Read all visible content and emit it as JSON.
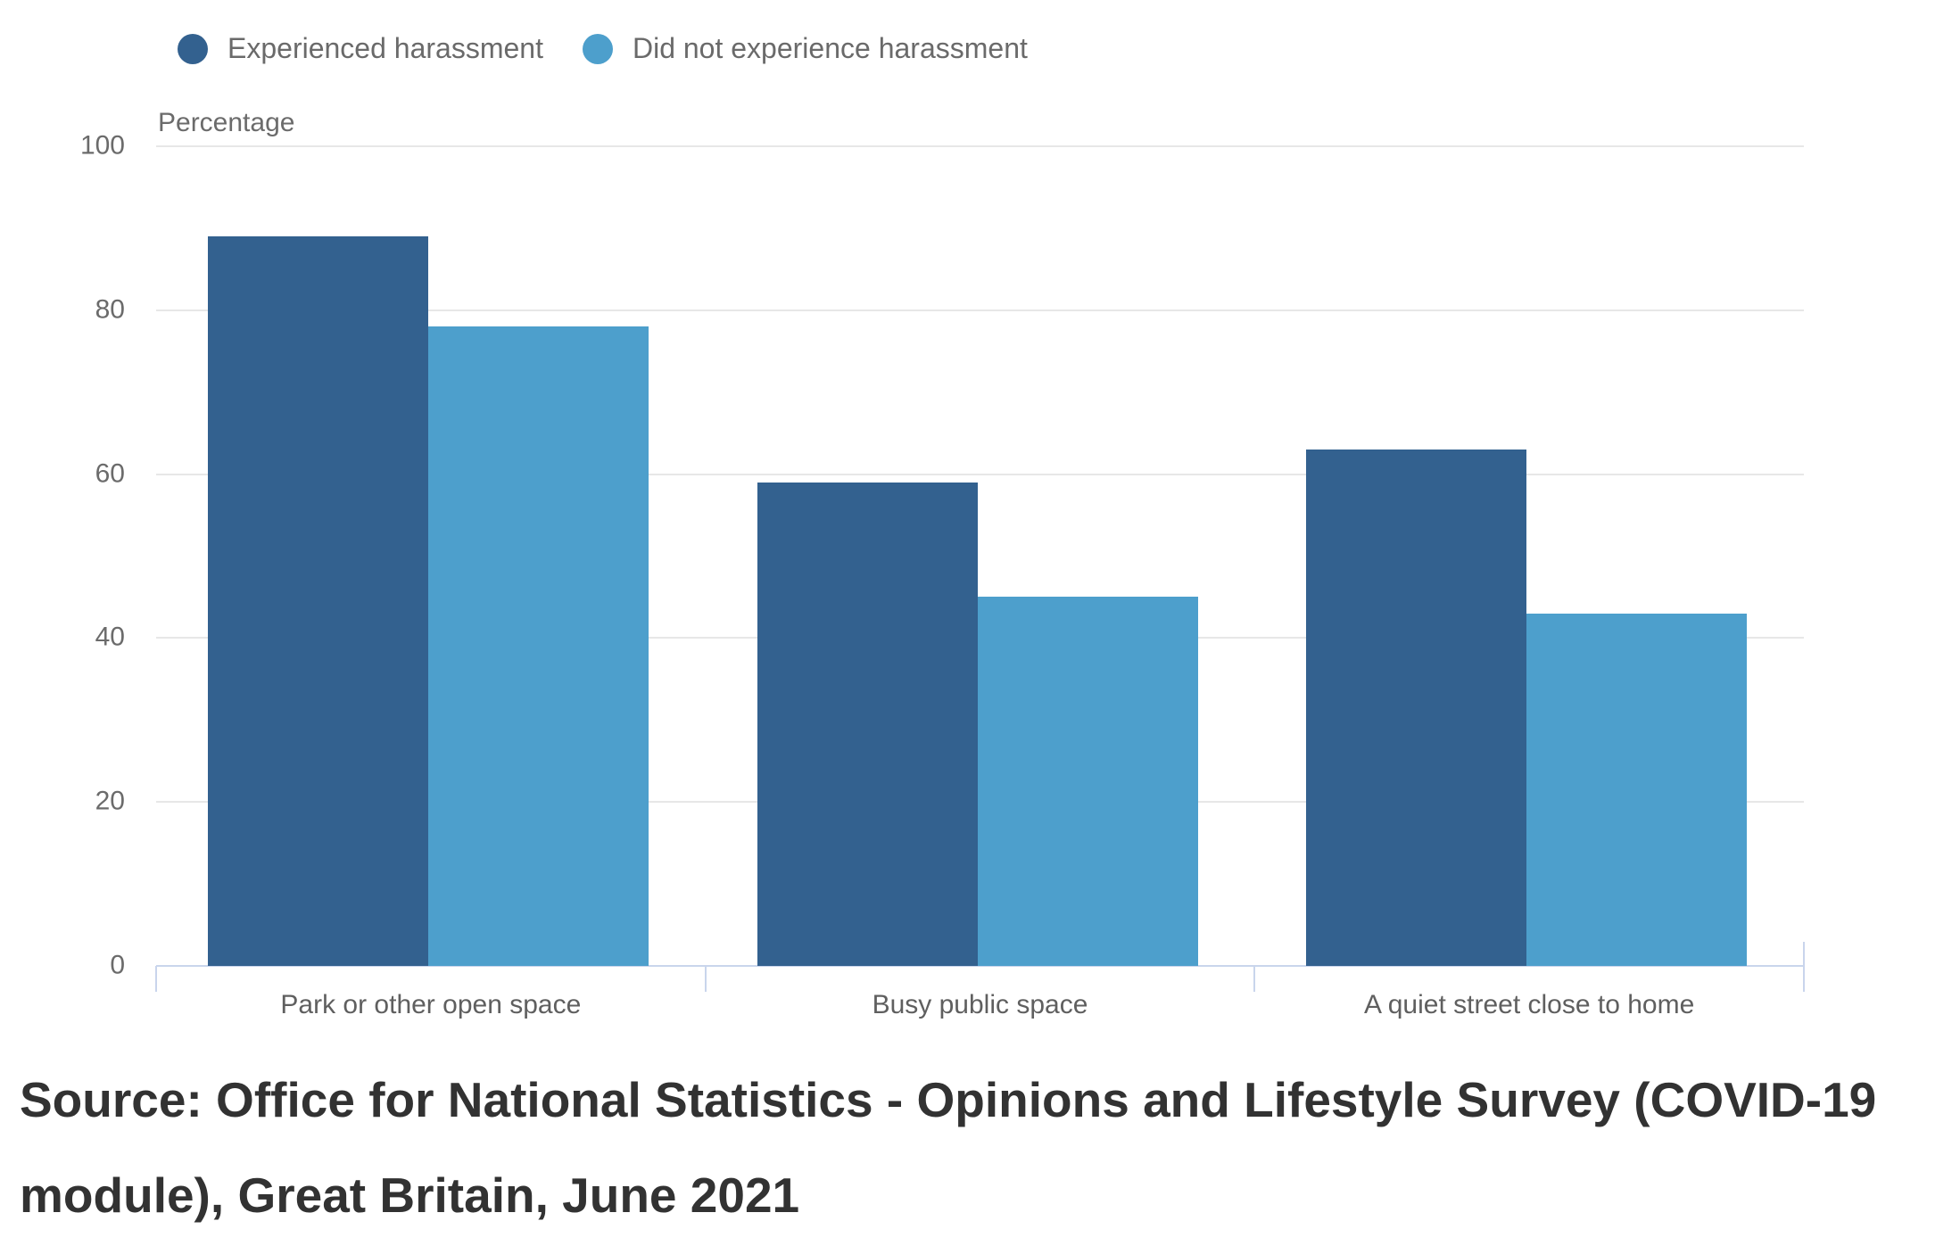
{
  "chart": {
    "y_axis_title": "Percentage",
    "legend": {
      "items": [
        {
          "label": "Experienced harassment",
          "color": "#33618f"
        },
        {
          "label": "Did not experience harassment",
          "color": "#4d9fcc"
        }
      ]
    }
  },
  "chart_data": {
    "type": "bar",
    "categories": [
      "Park or other open space",
      "Busy public space",
      "A quiet street close to home"
    ],
    "series": [
      {
        "name": "Experienced harassment",
        "color": "#33618f",
        "values": [
          89,
          59,
          63
        ]
      },
      {
        "name": "Did not experience harassment",
        "color": "#4d9fcc",
        "values": [
          78,
          45,
          43
        ]
      }
    ],
    "title": "",
    "xlabel": "",
    "ylabel": "Percentage",
    "ylim": [
      0,
      100
    ],
    "yticks": [
      0,
      20,
      40,
      60,
      80,
      100
    ],
    "grid": true,
    "legend_position": "top"
  },
  "source_text": "Source: Office for National Statistics - Opinions and Lifestyle Survey (COVID-19 module), Great Britain, June 2021"
}
